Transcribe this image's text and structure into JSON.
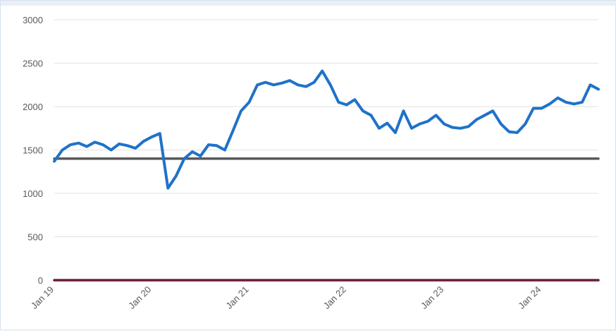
{
  "chart_data": {
    "type": "line",
    "title": "",
    "xlabel": "",
    "ylabel": "",
    "ylim": [
      0,
      3000
    ],
    "yticks": [
      0,
      500,
      1000,
      1500,
      2000,
      2500,
      3000
    ],
    "xticks": [
      "Jan 19",
      "Jan 20",
      "Jan 21",
      "Jan 22",
      "Jan 23",
      "Jan 24"
    ],
    "xrange": [
      "2019-01",
      "2024-08"
    ],
    "grid": true,
    "legend": "none",
    "series": [
      {
        "color": "#1f72c8",
        "x": [
          "2019-01",
          "2019-02",
          "2019-03",
          "2019-04",
          "2019-05",
          "2019-06",
          "2019-07",
          "2019-08",
          "2019-09",
          "2019-10",
          "2019-11",
          "2019-12",
          "2020-01",
          "2020-02",
          "2020-03",
          "2020-04",
          "2020-05",
          "2020-06",
          "2020-07",
          "2020-08",
          "2020-09",
          "2020-10",
          "2020-11",
          "2020-12",
          "2021-01",
          "2021-02",
          "2021-03",
          "2021-04",
          "2021-05",
          "2021-06",
          "2021-07",
          "2021-08",
          "2021-09",
          "2021-10",
          "2021-11",
          "2021-12",
          "2022-01",
          "2022-02",
          "2022-03",
          "2022-04",
          "2022-05",
          "2022-06",
          "2022-07",
          "2022-08",
          "2022-09",
          "2022-10",
          "2022-11",
          "2022-12",
          "2023-01",
          "2023-02",
          "2023-03",
          "2023-04",
          "2023-05",
          "2023-06",
          "2023-07",
          "2023-08",
          "2023-09",
          "2023-10",
          "2023-11",
          "2023-12",
          "2024-01",
          "2024-02",
          "2024-03",
          "2024-04",
          "2024-05",
          "2024-06",
          "2024-07",
          "2024-08"
        ],
        "values": [
          1370,
          1500,
          1560,
          1580,
          1540,
          1590,
          1560,
          1500,
          1570,
          1550,
          1520,
          1600,
          1650,
          1690,
          1060,
          1200,
          1400,
          1480,
          1430,
          1560,
          1550,
          1500,
          1720,
          1950,
          2050,
          2250,
          2280,
          2250,
          2270,
          2300,
          2250,
          2230,
          2280,
          2410,
          2250,
          2050,
          2020,
          2080,
          1950,
          1900,
          1750,
          1810,
          1700,
          1950,
          1750,
          1800,
          1830,
          1900,
          1800,
          1760,
          1750,
          1770,
          1850,
          1900,
          1950,
          1800,
          1710,
          1700,
          1800,
          1980,
          1980,
          2030,
          2100,
          2050,
          2030,
          2050,
          2250,
          2200
        ]
      },
      {
        "color": "#595959",
        "x": [
          "2019-01",
          "2024-08"
        ],
        "values": [
          1400,
          1400
        ]
      },
      {
        "color": "#6b1d3a",
        "x": [
          "2019-01",
          "2024-08"
        ],
        "values": [
          0,
          0
        ]
      }
    ]
  }
}
